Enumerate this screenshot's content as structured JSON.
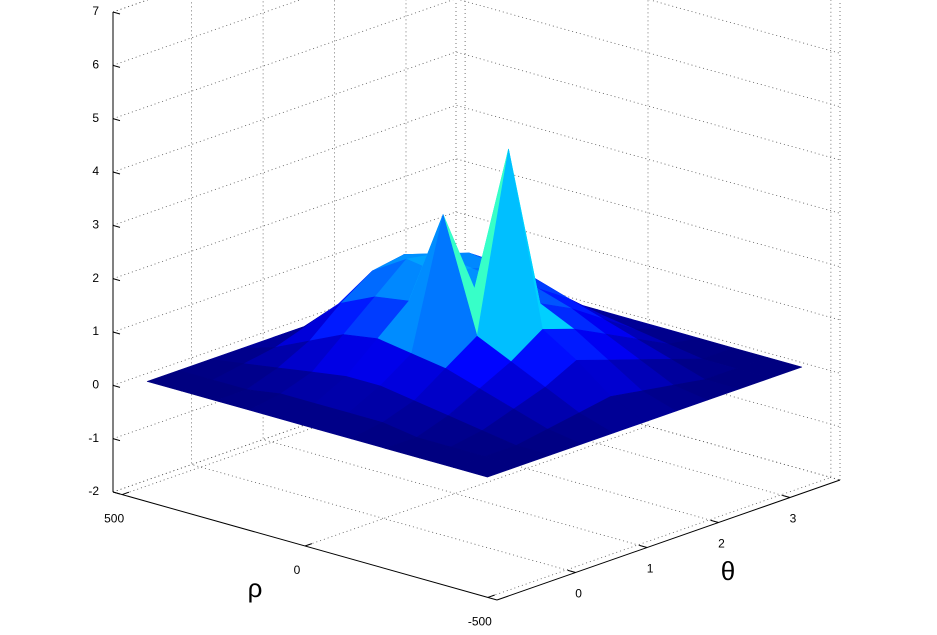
{
  "chart_data": {
    "type": "surface",
    "xlabel": "θ",
    "ylabel": "ρ",
    "xlim": [
      -1.1,
      3.7
    ],
    "ylim": [
      -525,
      525
    ],
    "zlim": [
      -2,
      7
    ],
    "xticks": [
      0,
      1,
      2,
      3
    ],
    "yticks": [
      -500,
      0,
      500
    ],
    "zticks": [
      -2,
      -1,
      0,
      1,
      2,
      3,
      4,
      5,
      6,
      7
    ],
    "grid": true,
    "colormap": "jet",
    "clim": [
      0,
      6
    ],
    "x": [
      -0.8,
      -0.36,
      0.08,
      0.52,
      0.96,
      1.4,
      1.84,
      2.28,
      2.72,
      3.16,
      3.6
    ],
    "y": [
      -440,
      -347,
      -254,
      -161,
      -68,
      25,
      118,
      211,
      304,
      397,
      490
    ],
    "z": [
      [
        0,
        0,
        0,
        0,
        0,
        0,
        0,
        0,
        0,
        0,
        0
      ],
      [
        0,
        0,
        0,
        0.1,
        0.2,
        0.3,
        0.2,
        0.1,
        0,
        0,
        0
      ],
      [
        0,
        0,
        0.1,
        0.3,
        0.5,
        0.8,
        0.6,
        0.4,
        0.2,
        0,
        0
      ],
      [
        0,
        0,
        0.2,
        0.5,
        0.8,
        1.2,
        1.0,
        0.7,
        0.4,
        0.1,
        0
      ],
      [
        0,
        0.1,
        0.3,
        0.7,
        1.1,
        4.4,
        1.3,
        1.0,
        0.6,
        0.2,
        0
      ],
      [
        0,
        0.1,
        0.4,
        0.8,
        3.2,
        1.6,
        1.5,
        1.2,
        0.8,
        0.3,
        0
      ],
      [
        0,
        0.1,
        0.4,
        0.9,
        1.4,
        1.7,
        1.6,
        1.4,
        1.0,
        0.3,
        0
      ],
      [
        0,
        0.1,
        0.3,
        0.8,
        1.3,
        1.8,
        1.7,
        1.5,
        1.1,
        0.3,
        0
      ],
      [
        0,
        0,
        0.2,
        0.5,
        1.0,
        1.4,
        1.5,
        1.3,
        0.8,
        0.2,
        0
      ],
      [
        0,
        0,
        0.1,
        0.2,
        0.4,
        0.6,
        0.6,
        0.5,
        0.3,
        0.1,
        0
      ],
      [
        0,
        0,
        0,
        0,
        0,
        0,
        0,
        0,
        0,
        0,
        0
      ]
    ]
  }
}
